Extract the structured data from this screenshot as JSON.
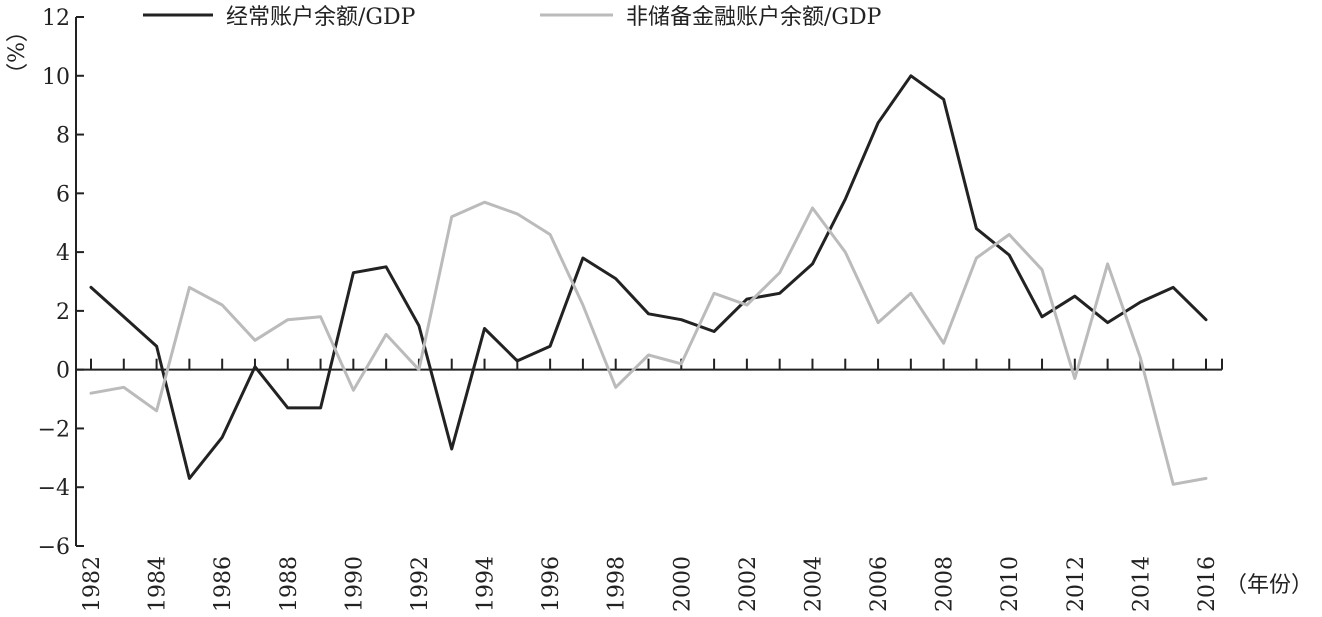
{
  "chart_data": {
    "type": "line",
    "title": "",
    "xlabel": "（年份）",
    "ylabel": "（%）",
    "ylim": [
      -6,
      12
    ],
    "yticks": [
      -6,
      -4,
      -2,
      0,
      2,
      4,
      6,
      8,
      10,
      12
    ],
    "xticks": [
      1982,
      1984,
      1986,
      1988,
      1990,
      1992,
      1994,
      1996,
      1998,
      2000,
      2002,
      2004,
      2006,
      2008,
      2010,
      2012,
      2014,
      2016
    ],
    "x": [
      1982,
      1983,
      1984,
      1985,
      1986,
      1987,
      1988,
      1989,
      1990,
      1991,
      1992,
      1993,
      1994,
      1995,
      1996,
      1997,
      1998,
      1999,
      2000,
      2001,
      2002,
      2003,
      2004,
      2005,
      2006,
      2007,
      2008,
      2009,
      2010,
      2011,
      2012,
      2013,
      2014,
      2015,
      2016
    ],
    "legend_position": "top",
    "series": [
      {
        "name": "经常账户余额/GDP",
        "color": "#222222",
        "values": [
          2.8,
          1.8,
          0.8,
          -3.7,
          -2.3,
          0.1,
          -1.3,
          -1.3,
          3.3,
          3.5,
          1.5,
          -2.7,
          1.4,
          0.3,
          0.8,
          3.8,
          3.1,
          1.9,
          1.7,
          1.3,
          2.4,
          2.6,
          3.6,
          5.8,
          8.4,
          10.0,
          9.2,
          4.8,
          3.9,
          1.8,
          2.5,
          1.6,
          2.3,
          2.8,
          1.7
        ]
      },
      {
        "name": "非储备金融账户余额/GDP",
        "color": "#bbbbbb",
        "values": [
          -0.8,
          -0.6,
          -1.4,
          2.8,
          2.2,
          1.0,
          1.7,
          1.8,
          -0.7,
          1.2,
          0.0,
          5.2,
          5.7,
          5.3,
          4.6,
          2.2,
          -0.6,
          0.5,
          0.2,
          2.6,
          2.2,
          3.3,
          5.5,
          4.0,
          1.6,
          2.6,
          0.9,
          3.8,
          4.6,
          3.4,
          -0.3,
          3.6,
          0.4,
          -3.9,
          -3.7
        ]
      }
    ]
  }
}
